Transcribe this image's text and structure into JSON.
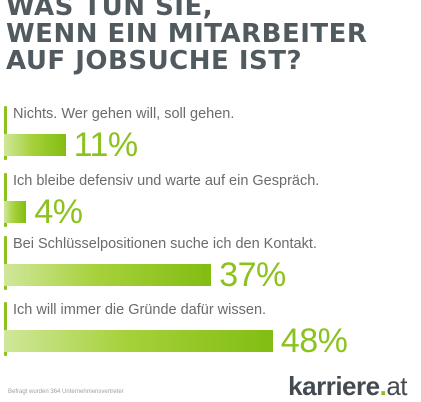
{
  "title": "WAS TUN SIE,\nWENN EIN MITARBEITER\nAUF JOBSUCHE IST?",
  "footnote": "Befragt wurden 364 Unternehmensvertreter",
  "brand": {
    "name": "karriere",
    "dot": ".",
    "tld": "at"
  },
  "colors": {
    "accent": "#8cc21f",
    "title": "#505a5f",
    "text": "#6b6b6b"
  },
  "chart_data": {
    "type": "bar",
    "orientation": "horizontal",
    "unit": "%",
    "categories": [
      "Nichts. Wer gehen will, soll gehen.",
      "Ich bleibe defensiv und warte auf ein Gespräch.",
      "Bei Schlüsselpositionen suche ich den Kontakt.",
      "Ich will immer die Gründe dafür wissen."
    ],
    "values": [
      11,
      4,
      37,
      48
    ],
    "labels": [
      "11%",
      "4%",
      "37%",
      "48%"
    ],
    "title": "WAS TUN SIE, WENN EIN MITARBEITER AUF JOBSUCHE IST?",
    "xlabel": "",
    "ylabel": "",
    "grid": false,
    "legend": "none"
  }
}
